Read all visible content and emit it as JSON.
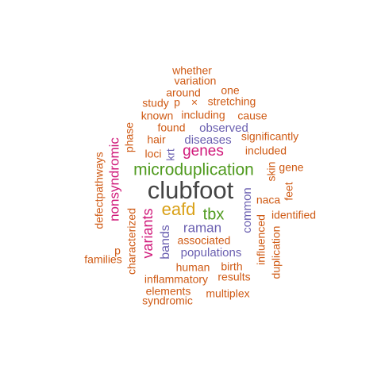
{
  "palette": {
    "dark": "#444444",
    "green": "#4f9a1e",
    "gold": "#d9a016",
    "purple": "#6a5fb0",
    "magenta": "#d0197a",
    "orange": "#cf5a14"
  },
  "words": [
    {
      "text": "clubfoot",
      "color": "dark"
    },
    {
      "text": "microduplication",
      "color": "green"
    },
    {
      "text": "eafd",
      "color": "gold"
    },
    {
      "text": "tbx",
      "color": "green"
    },
    {
      "text": "genes",
      "color": "magenta"
    },
    {
      "text": "nonsyndromic",
      "color": "magenta"
    },
    {
      "text": "variants",
      "color": "magenta"
    },
    {
      "text": "raman",
      "color": "purple"
    },
    {
      "text": "bands",
      "color": "purple"
    },
    {
      "text": "populations",
      "color": "purple"
    },
    {
      "text": "observed",
      "color": "purple"
    },
    {
      "text": "diseases",
      "color": "purple"
    },
    {
      "text": "common",
      "color": "purple"
    },
    {
      "text": "krt",
      "color": "purple"
    },
    {
      "text": "whether",
      "color": "orange"
    },
    {
      "text": "variation",
      "color": "orange"
    },
    {
      "text": "around",
      "color": "orange"
    },
    {
      "text": "one",
      "color": "orange"
    },
    {
      "text": "study",
      "color": "orange"
    },
    {
      "text": "p",
      "color": "orange"
    },
    {
      "text": "×",
      "color": "orange"
    },
    {
      "text": "stretching",
      "color": "orange"
    },
    {
      "text": "known",
      "color": "orange"
    },
    {
      "text": "including",
      "color": "orange"
    },
    {
      "text": "cause",
      "color": "orange"
    },
    {
      "text": "found",
      "color": "orange"
    },
    {
      "text": "phase",
      "color": "orange"
    },
    {
      "text": "hair",
      "color": "orange"
    },
    {
      "text": "significantly",
      "color": "orange"
    },
    {
      "text": "loci",
      "color": "orange"
    },
    {
      "text": "included",
      "color": "orange"
    },
    {
      "text": "skin",
      "color": "orange"
    },
    {
      "text": "gene",
      "color": "orange"
    },
    {
      "text": "defectpathways",
      "color": "orange"
    },
    {
      "text": "feet",
      "color": "orange"
    },
    {
      "text": "naca",
      "color": "orange"
    },
    {
      "text": "identified",
      "color": "orange"
    },
    {
      "text": "characterized",
      "color": "orange"
    },
    {
      "text": "influenced",
      "color": "orange"
    },
    {
      "text": "associated",
      "color": "orange"
    },
    {
      "text": "p",
      "color": "orange"
    },
    {
      "text": "duplication",
      "color": "orange"
    },
    {
      "text": "families",
      "color": "orange"
    },
    {
      "text": "human",
      "color": "orange"
    },
    {
      "text": "birth",
      "color": "orange"
    },
    {
      "text": "inflammatory",
      "color": "orange"
    },
    {
      "text": "results",
      "color": "orange"
    },
    {
      "text": "elements",
      "color": "orange"
    },
    {
      "text": "multiplex",
      "color": "orange"
    },
    {
      "text": "syndromic",
      "color": "orange"
    }
  ]
}
